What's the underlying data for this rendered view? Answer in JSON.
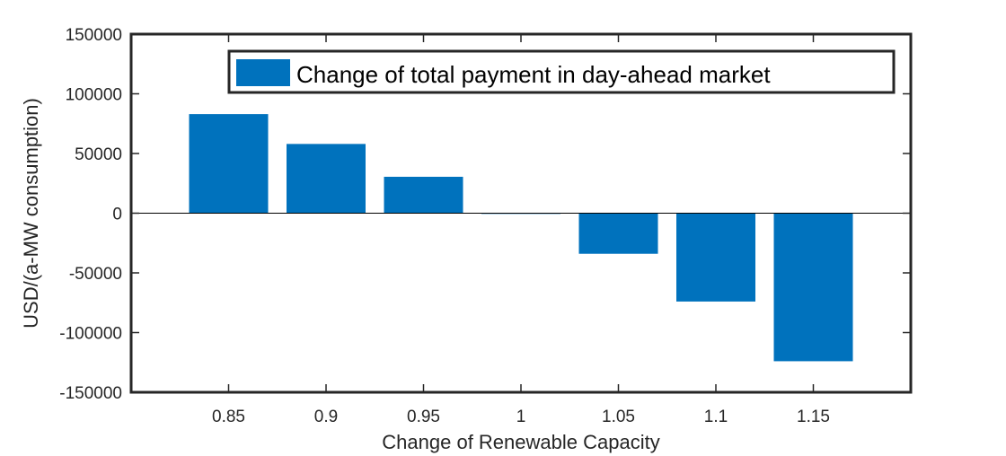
{
  "chart_data": {
    "type": "bar",
    "categories": [
      "0.85",
      "0.9",
      "0.95",
      "1",
      "1.05",
      "1.1",
      "1.15"
    ],
    "series": [
      {
        "name": "Change of total payment in day-ahead market",
        "values": [
          83000,
          58000,
          30500,
          0,
          -34000,
          -74000,
          -124000
        ],
        "color": "#0072BD"
      }
    ],
    "xlabel": "Change of Renewable Capacity",
    "ylabel": "USD/(a-MW consumption)",
    "ylim": [
      -150000,
      150000
    ],
    "yticks": [
      "-150000",
      "-100000",
      "-50000",
      "0",
      "50000",
      "100000",
      "150000"
    ],
    "xlim": [
      0.8,
      1.2
    ],
    "grid": false,
    "legend": "top-right"
  }
}
